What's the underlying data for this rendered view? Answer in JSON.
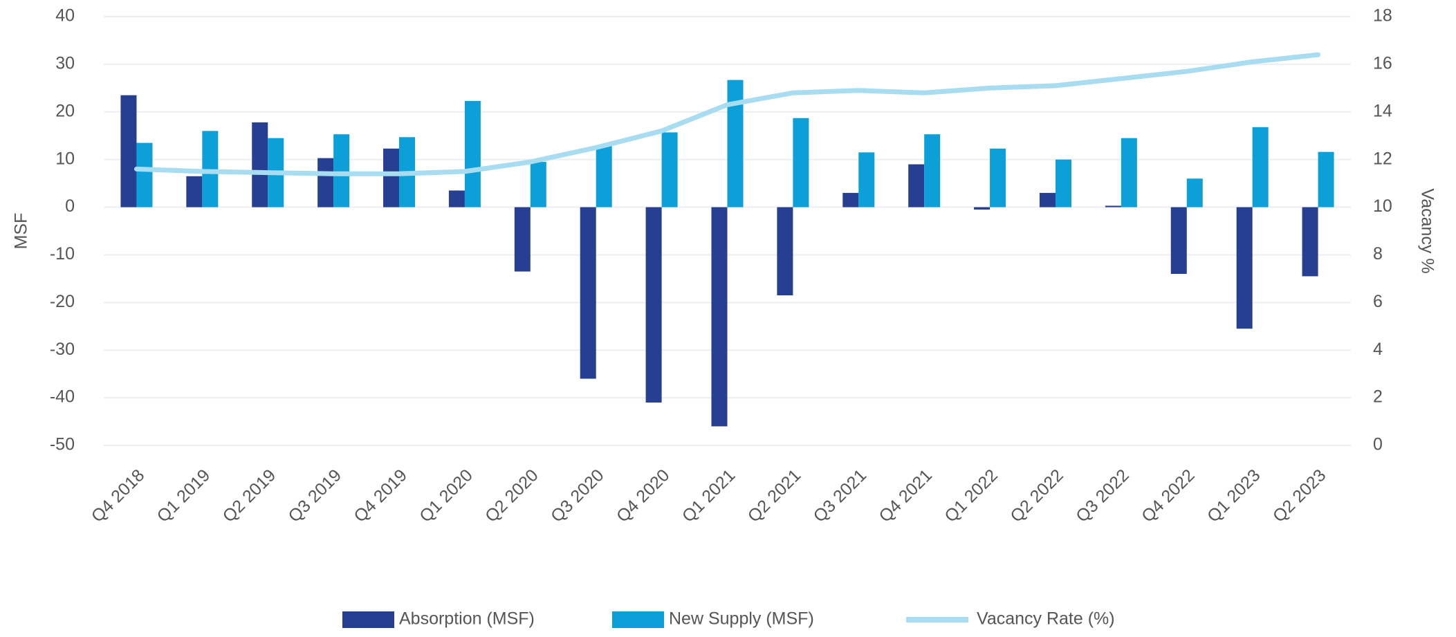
{
  "chart_data": {
    "type": "bar",
    "y_label": "MSF",
    "y2_label": "Vacancy %",
    "categories": [
      "Q4 2018",
      "Q1 2019",
      "Q2 2019",
      "Q3 2019",
      "Q4 2019",
      "Q1 2020",
      "Q2 2020",
      "Q3 2020",
      "Q4 2020",
      "Q1 2021",
      "Q2 2021",
      "Q3 2021",
      "Q4 2021",
      "Q1 2022",
      "Q2 2022",
      "Q3 2022",
      "Q4 2022",
      "Q1 2023",
      "Q2 2023"
    ],
    "series": [
      {
        "name": "Absorption (MSF)",
        "type": "bar",
        "color": "#263f91",
        "values": [
          23.5,
          6.5,
          17.8,
          10.3,
          12.3,
          3.5,
          -13.5,
          -36,
          -41,
          -46,
          -18.5,
          3,
          9,
          -0.5,
          3,
          0.3,
          -14,
          -25.5,
          -14.5
        ]
      },
      {
        "name": "New Supply (MSF)",
        "type": "bar",
        "color": "#0d9fd8",
        "values": [
          13.5,
          16,
          14.5,
          15.3,
          14.7,
          22.3,
          9.5,
          13,
          15.7,
          26.7,
          18.7,
          11.5,
          15.3,
          12.3,
          10,
          14.5,
          6,
          16.8,
          11.6
        ]
      },
      {
        "name": "Vacancy Rate (%)",
        "type": "line",
        "axis": "y2",
        "color": "#a8dcf0",
        "values": [
          11.6,
          11.5,
          11.45,
          11.4,
          11.4,
          11.5,
          11.9,
          12.5,
          13.2,
          14.3,
          14.8,
          14.9,
          14.8,
          15.0,
          15.1,
          15.4,
          15.7,
          16.1,
          16.4
        ]
      }
    ],
    "ylim": [
      -50,
      40
    ],
    "yticks": [
      -50,
      -40,
      -30,
      -20,
      -10,
      0,
      10,
      20,
      30,
      40
    ],
    "y2lim": [
      0,
      18
    ],
    "y2ticks": [
      0,
      2,
      4,
      6,
      8,
      10,
      12,
      14,
      16,
      18
    ],
    "grid": true,
    "legend": "bottom"
  }
}
